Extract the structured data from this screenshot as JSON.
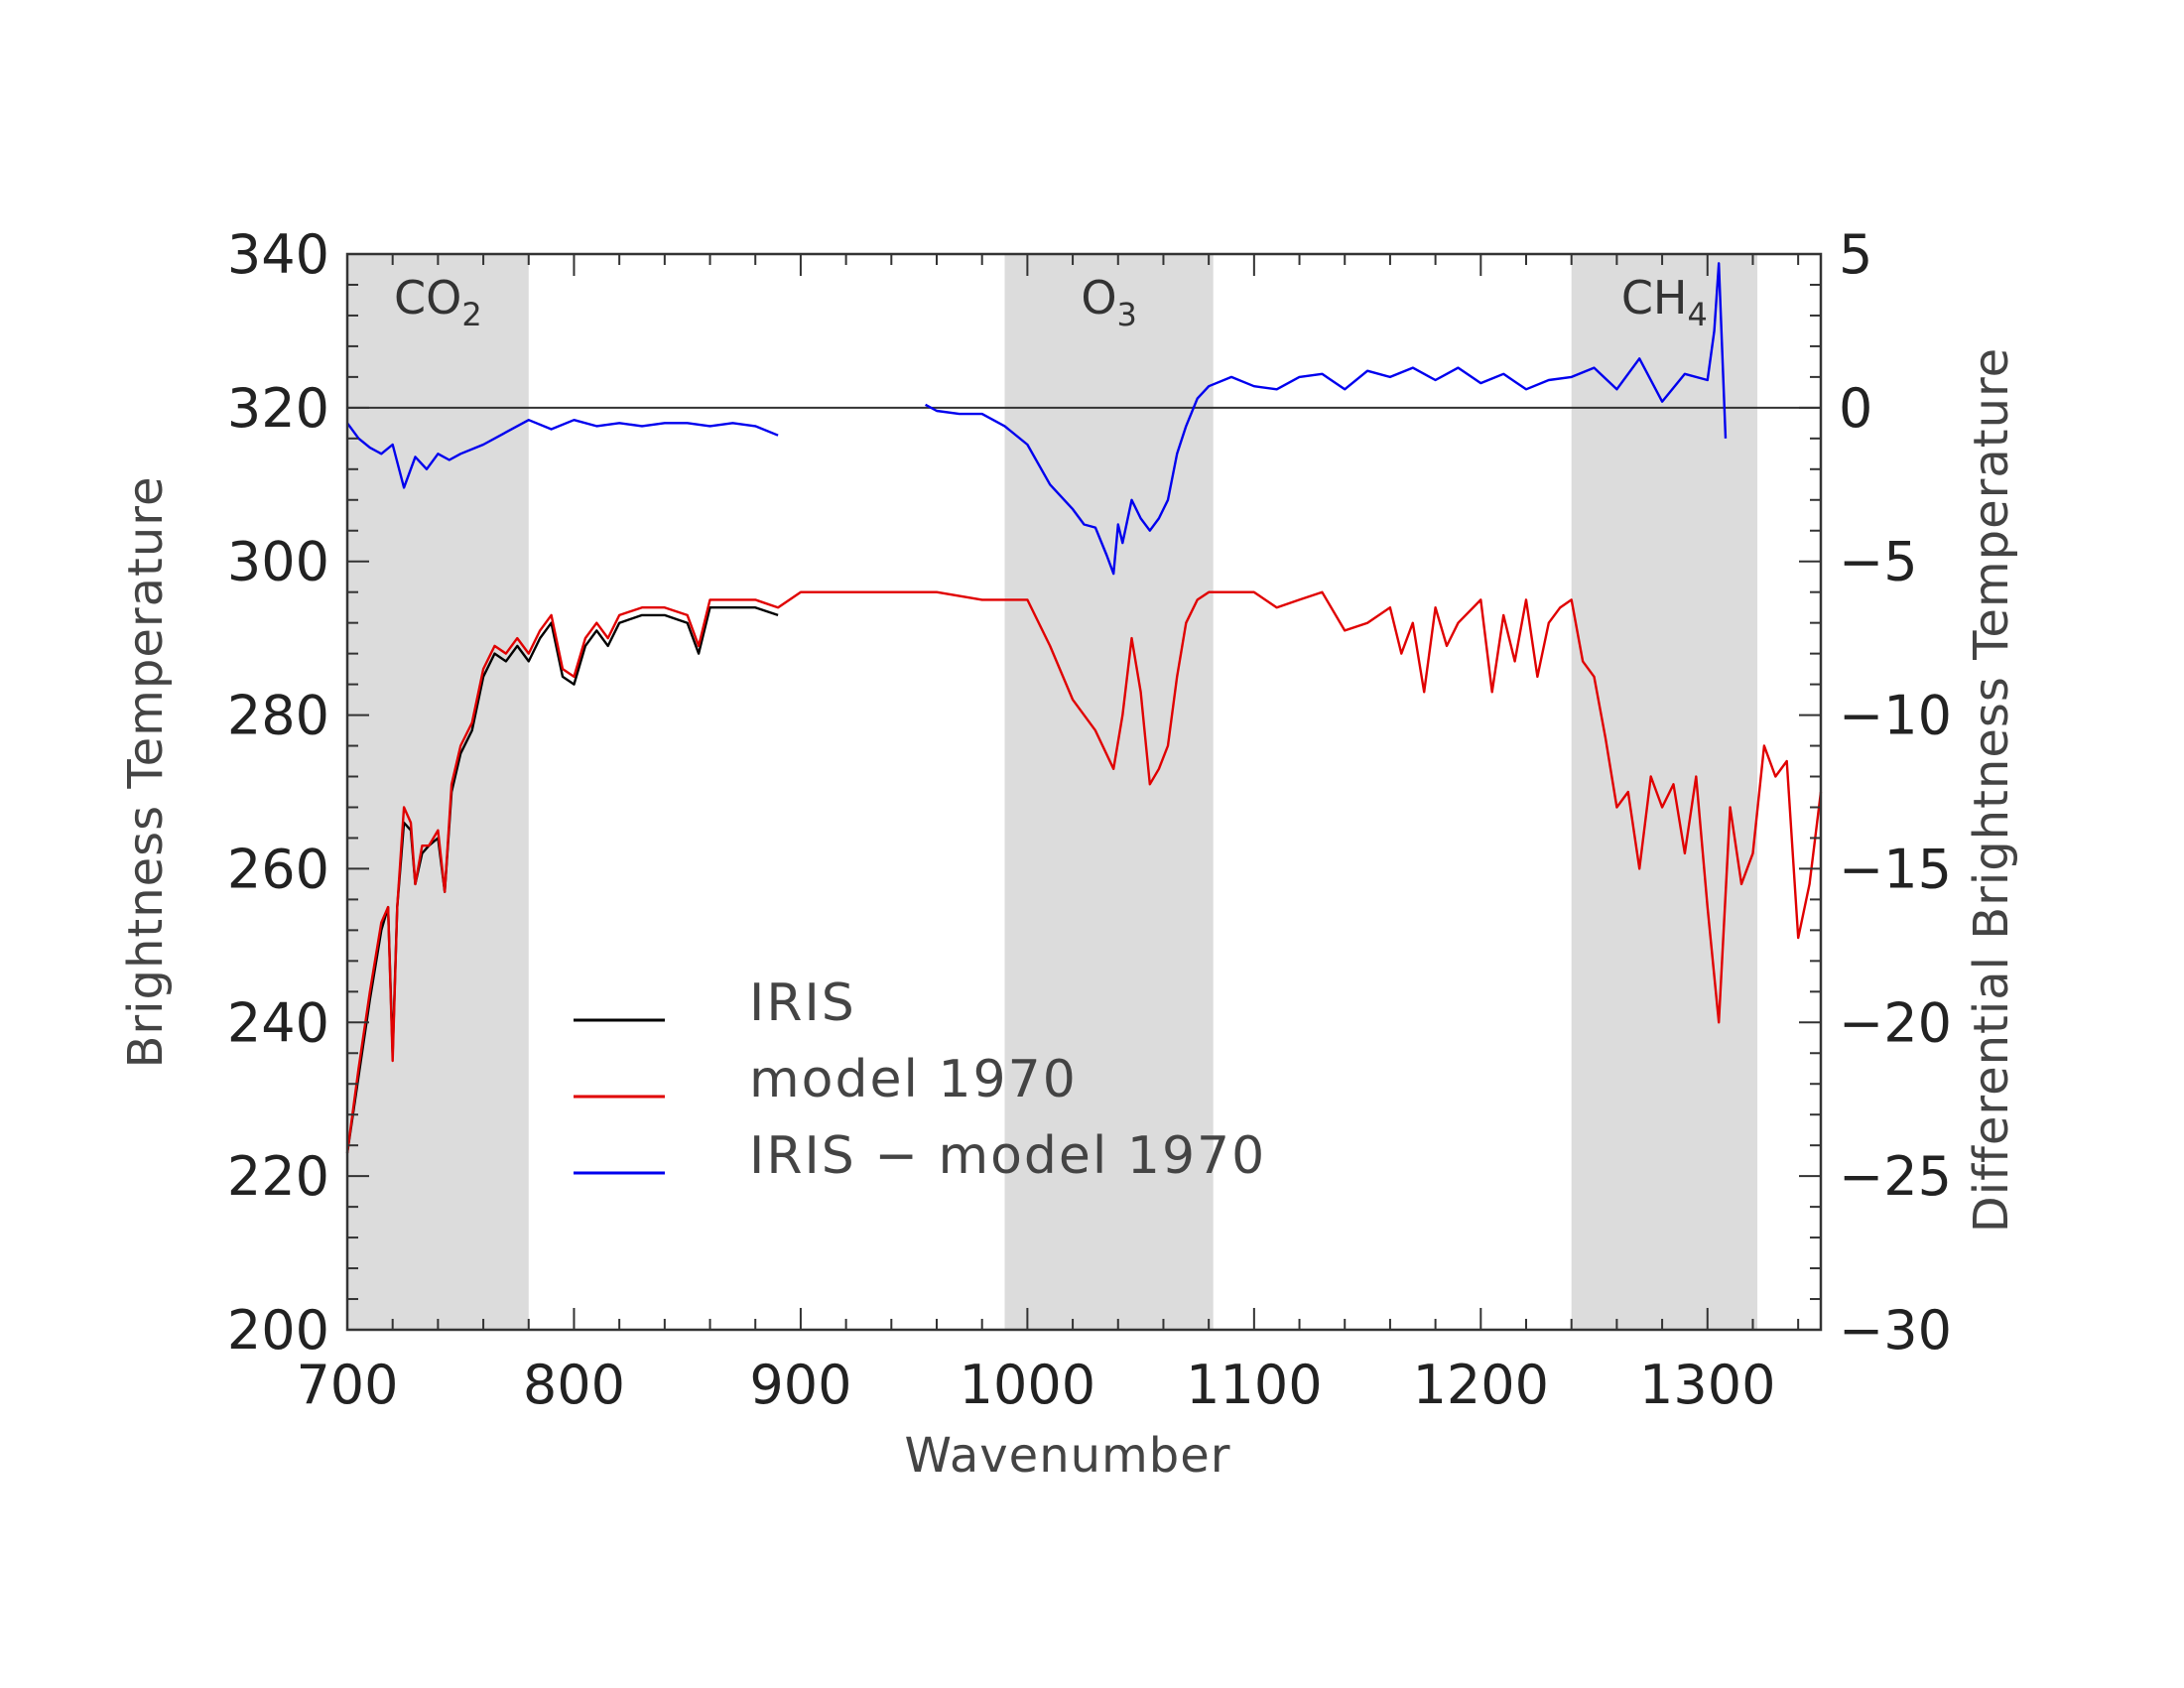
{
  "chart_data": {
    "type": "line",
    "xlabel": "Wavenumber",
    "ylabel": "Brightness Temperature",
    "y2label": "Differential Brightness Temperature",
    "xlim": [
      700,
      1350
    ],
    "ylim": [
      200,
      340
    ],
    "y2lim": [
      -30,
      5
    ],
    "x_ticks": [
      "700",
      "800",
      "900",
      "1000",
      "1100",
      "1200",
      "1300"
    ],
    "y_ticks": [
      "200",
      "220",
      "240",
      "260",
      "280",
      "300",
      "320",
      "340"
    ],
    "y2_ticks": [
      "5",
      "0",
      "−5",
      "−10",
      "−15",
      "−20",
      "−25",
      "−30"
    ],
    "y2_tick_values": [
      5,
      0,
      -5,
      -10,
      -15,
      -20,
      -25,
      -30
    ],
    "shaded_bands": [
      {
        "label": "CO",
        "sub": "2",
        "x": [
          700,
          780
        ]
      },
      {
        "label": "O",
        "sub": "3",
        "x": [
          990,
          1082
        ]
      },
      {
        "label": "CH",
        "sub": "4",
        "x": [
          1240,
          1322
        ]
      }
    ],
    "legend_placement": "lower-left",
    "grid": false,
    "series": [
      {
        "name": "IRIS",
        "color": "#000000",
        "axis": "left",
        "x": [
          700,
          705,
          710,
          715,
          718,
          720,
          722,
          725,
          728,
          730,
          733,
          736,
          740,
          743,
          746,
          750,
          755,
          760,
          765,
          770,
          775,
          780,
          785,
          790,
          795,
          800,
          805,
          810,
          815,
          820,
          830,
          840,
          850,
          855,
          860,
          870,
          880,
          890
        ],
        "y": [
          223,
          233,
          243,
          252,
          255,
          236,
          255,
          266,
          265,
          258,
          262,
          263,
          264,
          257,
          270,
          275,
          278,
          285,
          288,
          287,
          289,
          287,
          290,
          292,
          285,
          284,
          289,
          291,
          289,
          292,
          293,
          293,
          292,
          288,
          294,
          294,
          294,
          293
        ]
      },
      {
        "name": "model 1970",
        "color": "#e00000",
        "axis": "left",
        "x": [
          700,
          705,
          710,
          715,
          718,
          720,
          722,
          725,
          728,
          730,
          733,
          736,
          740,
          743,
          746,
          750,
          755,
          760,
          765,
          770,
          775,
          780,
          785,
          790,
          795,
          800,
          805,
          810,
          815,
          820,
          830,
          840,
          850,
          855,
          860,
          870,
          880,
          890,
          900,
          920,
          940,
          960,
          980,
          990,
          1000,
          1010,
          1020,
          1030,
          1038,
          1042,
          1046,
          1050,
          1054,
          1058,
          1062,
          1066,
          1070,
          1075,
          1080,
          1090,
          1100,
          1110,
          1120,
          1130,
          1140,
          1150,
          1160,
          1165,
          1170,
          1175,
          1180,
          1185,
          1190,
          1200,
          1205,
          1210,
          1215,
          1220,
          1225,
          1230,
          1235,
          1240,
          1245,
          1250,
          1255,
          1260,
          1265,
          1270,
          1275,
          1280,
          1285,
          1290,
          1295,
          1300,
          1305,
          1310,
          1315,
          1320,
          1325,
          1330,
          1335,
          1340,
          1345,
          1350
        ],
        "y": [
          223,
          234,
          244,
          253,
          255,
          235,
          255,
          268,
          266,
          258,
          263,
          263,
          265,
          257,
          271,
          276,
          279,
          286,
          289,
          288,
          290,
          288,
          291,
          293,
          286,
          285,
          290,
          292,
          290,
          293,
          294,
          294,
          293,
          289,
          295,
          295,
          295,
          294,
          296,
          296,
          296,
          296,
          295,
          295,
          295,
          289,
          282,
          278,
          273,
          280,
          290,
          283,
          271,
          273,
          276,
          285,
          292,
          295,
          296,
          296,
          296,
          294,
          295,
          296,
          291,
          292,
          294,
          288,
          292,
          283,
          294,
          289,
          292,
          295,
          283,
          293,
          287,
          295,
          285,
          292,
          294,
          295,
          287,
          285,
          277,
          268,
          270,
          260,
          272,
          268,
          271,
          262,
          272,
          255,
          240,
          268,
          258,
          262,
          276,
          272,
          274,
          251,
          258,
          270
        ]
      },
      {
        "name": "IRIS − model 1970",
        "color": "#0000ee",
        "axis": "right",
        "segments": [
          {
            "x": [
              700,
              705,
              710,
              715,
              720,
              725,
              730,
              735,
              740,
              745,
              750,
              760,
              770,
              780,
              790,
              800,
              810,
              820,
              830,
              840,
              850,
              860,
              870,
              880,
              890
            ],
            "y": [
              -0.5,
              -1.0,
              -1.3,
              -1.5,
              -1.2,
              -2.6,
              -1.6,
              -2.0,
              -1.5,
              -1.7,
              -1.5,
              -1.2,
              -0.8,
              -0.4,
              -0.7,
              -0.4,
              -0.6,
              -0.5,
              -0.6,
              -0.5,
              -0.5,
              -0.6,
              -0.5,
              -0.6,
              -0.9
            ]
          },
          {
            "x": [
              955,
              960,
              970,
              980,
              990,
              1000,
              1010,
              1020,
              1025,
              1030,
              1035,
              1038,
              1040,
              1042,
              1046,
              1050,
              1054,
              1058,
              1062,
              1066,
              1070,
              1075,
              1080,
              1090,
              1100,
              1110,
              1120,
              1130,
              1140,
              1150,
              1160,
              1170,
              1180,
              1190,
              1200,
              1210,
              1220,
              1230,
              1240,
              1250,
              1260,
              1270,
              1280,
              1290,
              1300,
              1303,
              1305,
              1308
            ],
            "y": [
              0.1,
              -0.1,
              -0.2,
              -0.2,
              -0.6,
              -1.2,
              -2.5,
              -3.3,
              -3.8,
              -3.9,
              -4.8,
              -5.4,
              -3.8,
              -4.4,
              -3.0,
              -3.6,
              -4.0,
              -3.6,
              -3.0,
              -1.5,
              -0.6,
              0.3,
              0.7,
              1.0,
              0.7,
              0.6,
              1.0,
              1.1,
              0.6,
              1.2,
              1.0,
              1.3,
              0.9,
              1.3,
              0.8,
              1.1,
              0.6,
              0.9,
              1.0,
              1.3,
              0.6,
              1.6,
              0.2,
              1.1,
              0.9,
              2.5,
              4.7,
              -1.0
            ]
          }
        ]
      }
    ]
  }
}
